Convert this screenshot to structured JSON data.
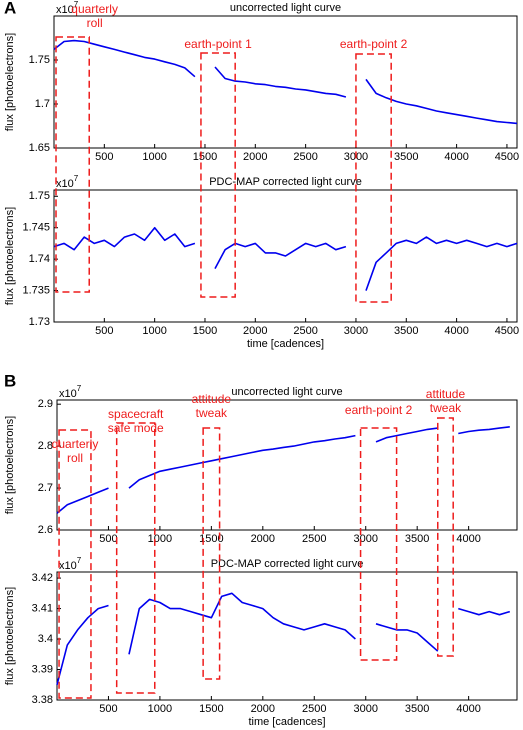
{
  "panel_labels": [
    "A",
    "B"
  ],
  "chart_data": [
    {
      "type": "line",
      "title": "uncorrected light curve",
      "ylabel": "flux [photoelectrons]",
      "y_multiplier": "x10",
      "y_multiplier_exponent": "7",
      "x": [
        0,
        100,
        200,
        300,
        400,
        500,
        600,
        700,
        800,
        900,
        1000,
        1100,
        1200,
        1300,
        1400,
        1500,
        1600,
        1700,
        1800,
        1900,
        2000,
        2100,
        2200,
        2300,
        2400,
        2500,
        2600,
        2700,
        2800,
        2900,
        3000,
        3100,
        3200,
        3300,
        3400,
        3500,
        3600,
        3700,
        3800,
        3900,
        4000,
        4100,
        4200,
        4300,
        4400,
        4500,
        4600
      ],
      "values": [
        1.762,
        1.771,
        1.772,
        1.771,
        1.768,
        1.765,
        1.762,
        1.759,
        1.756,
        1.753,
        1.751,
        1.748,
        1.745,
        1.741,
        1.731,
        null,
        1.742,
        1.729,
        1.726,
        1.725,
        1.723,
        1.722,
        1.72,
        1.719,
        1.717,
        1.716,
        1.714,
        1.712,
        1.711,
        1.708,
        null,
        1.728,
        1.712,
        1.707,
        1.703,
        1.7,
        1.698,
        1.695,
        1.692,
        1.69,
        1.688,
        1.686,
        1.684,
        1.682,
        1.68,
        1.679,
        1.678
      ],
      "color": "#0000ee",
      "xlim": [
        0,
        4600
      ],
      "ylim": [
        1.65,
        1.8
      ],
      "xticks": [
        500,
        1000,
        1500,
        2000,
        2500,
        3000,
        3500,
        4000,
        4500
      ],
      "yticks": [
        1.65,
        1.7,
        1.75
      ],
      "annotations": [
        {
          "lines": [
            "quarterly",
            "roll"
          ],
          "x": [
            20,
            350
          ]
        },
        {
          "lines": [
            "earth-point 1"
          ],
          "x": [
            1460,
            1800
          ]
        },
        {
          "lines": [
            "earth-point 2"
          ],
          "x": [
            3000,
            3350
          ]
        }
      ]
    },
    {
      "type": "line",
      "title": "PDC-MAP corrected light curve",
      "ylabel": "flux [photoelectrons]",
      "xlabel": "time [cadences]",
      "y_multiplier": "x10",
      "y_multiplier_exponent": "7",
      "x": [
        0,
        100,
        200,
        300,
        400,
        500,
        600,
        700,
        800,
        900,
        1000,
        1100,
        1200,
        1300,
        1400,
        1500,
        1600,
        1700,
        1800,
        1900,
        2000,
        2100,
        2200,
        2300,
        2400,
        2500,
        2600,
        2700,
        2800,
        2900,
        3000,
        3100,
        3200,
        3300,
        3400,
        3500,
        3600,
        3700,
        3800,
        3900,
        4000,
        4100,
        4200,
        4300,
        4400,
        4500,
        4600
      ],
      "values": [
        1.742,
        1.7425,
        1.7415,
        1.7435,
        1.7425,
        1.743,
        1.742,
        1.7435,
        1.744,
        1.743,
        1.745,
        1.743,
        1.744,
        1.742,
        1.7425,
        null,
        1.7385,
        1.7415,
        1.7425,
        1.742,
        1.7425,
        1.741,
        1.741,
        1.7405,
        1.7415,
        1.7425,
        1.742,
        1.7425,
        1.7415,
        1.742,
        null,
        1.735,
        1.7395,
        1.741,
        1.7425,
        1.743,
        1.7425,
        1.7435,
        1.7425,
        1.743,
        1.7425,
        1.743,
        1.7425,
        1.742,
        1.7425,
        1.742,
        1.7425
      ],
      "color": "#0000ee",
      "xlim": [
        0,
        4600
      ],
      "ylim": [
        1.73,
        1.751
      ],
      "xticks": [
        500,
        1000,
        1500,
        2000,
        2500,
        3000,
        3500,
        4000,
        4500
      ],
      "yticks": [
        1.73,
        1.735,
        1.74,
        1.745,
        1.75
      ]
    },
    {
      "type": "line",
      "title": "uncorrected light curve",
      "ylabel": "flux [photoelectrons]",
      "y_multiplier": "x10",
      "y_multiplier_exponent": "7",
      "x": [
        0,
        100,
        200,
        300,
        400,
        500,
        600,
        700,
        800,
        900,
        1000,
        1100,
        1200,
        1300,
        1400,
        1500,
        1600,
        1700,
        1800,
        1900,
        2000,
        2100,
        2200,
        2300,
        2400,
        2500,
        2600,
        2700,
        2800,
        2900,
        3000,
        3100,
        3200,
        3300,
        3400,
        3500,
        3600,
        3700,
        3800,
        3900,
        4000,
        4100,
        4200,
        4300,
        4400
      ],
      "values": [
        2.64,
        2.66,
        2.67,
        2.68,
        2.69,
        2.7,
        null,
        2.7,
        2.72,
        2.73,
        2.74,
        2.745,
        2.75,
        2.755,
        2.76,
        2.765,
        2.77,
        2.775,
        2.78,
        2.785,
        2.79,
        2.793,
        2.797,
        2.8,
        2.805,
        2.81,
        2.813,
        2.817,
        2.82,
        2.825,
        null,
        2.81,
        2.82,
        2.825,
        2.83,
        2.835,
        2.84,
        2.843,
        null,
        2.83,
        2.835,
        2.838,
        2.84,
        2.843,
        2.846
      ],
      "color": "#0000ee",
      "xlim": [
        0,
        4470
      ],
      "ylim": [
        2.6,
        2.91
      ],
      "xticks": [
        500,
        1000,
        1500,
        2000,
        2500,
        3000,
        3500,
        4000
      ],
      "yticks": [
        2.6,
        2.7,
        2.8,
        2.9
      ],
      "annotations": [
        {
          "lines": [
            "quarterly",
            "roll"
          ],
          "x": [
            20,
            330
          ]
        },
        {
          "lines": [
            "spacecraft",
            "safe mode"
          ],
          "x": [
            580,
            950
          ]
        },
        {
          "lines": [
            "attitude",
            "tweak"
          ],
          "x": [
            1420,
            1580
          ]
        },
        {
          "lines": [
            "earth-point 2"
          ],
          "x": [
            2950,
            3300
          ]
        },
        {
          "lines": [
            "attitude",
            "tweak"
          ],
          "x": [
            3700,
            3850
          ]
        }
      ]
    },
    {
      "type": "line",
      "title": "PDC-MAP corrected light curve",
      "ylabel": "flux [photoelectrons]",
      "xlabel": "time [cadences]",
      "y_multiplier": "x10",
      "y_multiplier_exponent": "7",
      "x": [
        0,
        100,
        200,
        300,
        400,
        500,
        600,
        700,
        800,
        900,
        1000,
        1100,
        1200,
        1300,
        1400,
        1500,
        1600,
        1700,
        1800,
        1900,
        2000,
        2100,
        2200,
        2300,
        2400,
        2500,
        2600,
        2700,
        2800,
        2900,
        3000,
        3100,
        3200,
        3300,
        3400,
        3500,
        3600,
        3700,
        3800,
        3900,
        4000,
        4100,
        4200,
        4300,
        4400
      ],
      "values": [
        3.385,
        3.398,
        3.403,
        3.407,
        3.41,
        3.411,
        null,
        3.395,
        3.41,
        3.413,
        3.412,
        3.41,
        3.41,
        3.409,
        3.408,
        3.407,
        3.414,
        3.415,
        3.412,
        3.411,
        3.41,
        3.407,
        3.405,
        3.404,
        3.403,
        3.404,
        3.405,
        3.404,
        3.403,
        3.4,
        null,
        3.405,
        3.404,
        3.403,
        3.403,
        3.402,
        3.399,
        3.396,
        null,
        3.41,
        3.409,
        3.408,
        3.409,
        3.408,
        3.409
      ],
      "color": "#0000ee",
      "xlim": [
        0,
        4470
      ],
      "ylim": [
        3.38,
        3.422
      ],
      "xticks": [
        500,
        1000,
        1500,
        2000,
        2500,
        3000,
        3500,
        4000
      ],
      "yticks": [
        3.38,
        3.39,
        3.4,
        3.41,
        3.42
      ]
    }
  ]
}
